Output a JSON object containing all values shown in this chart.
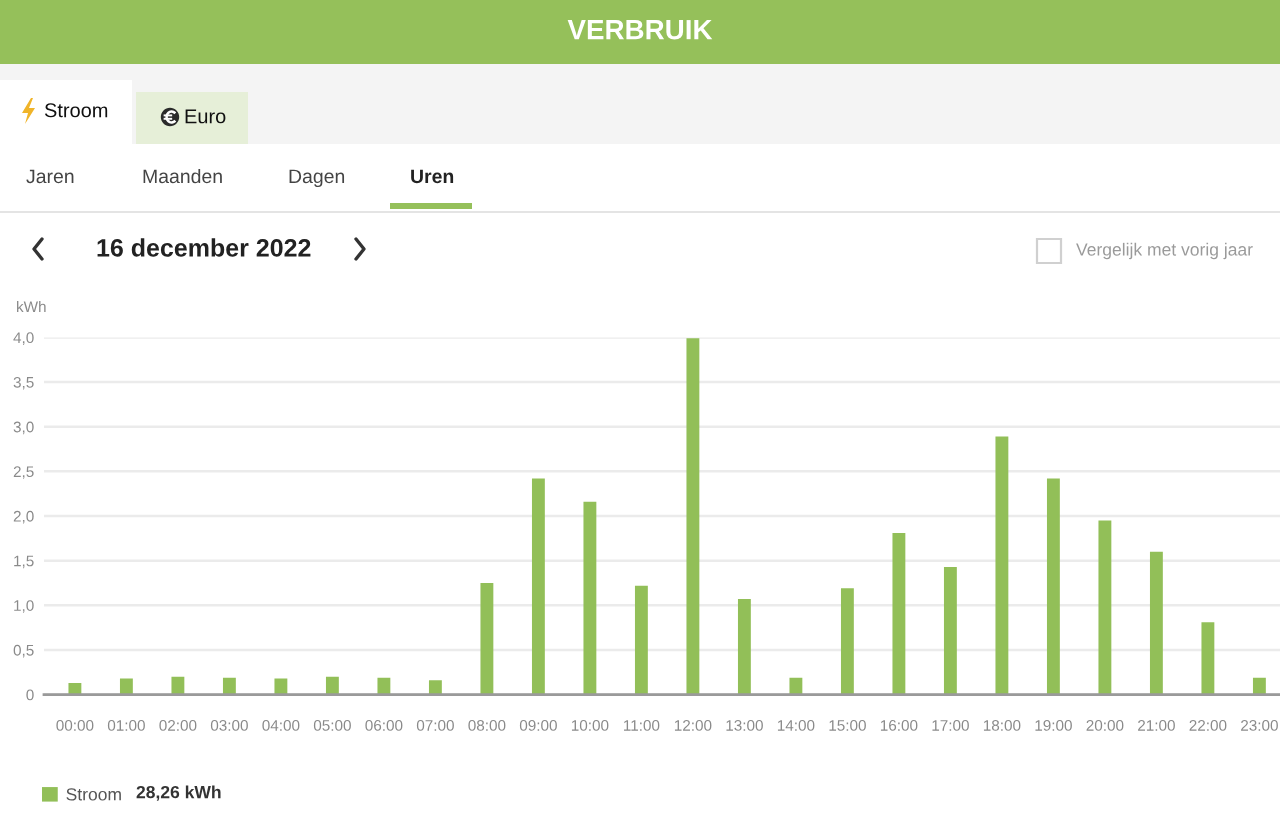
{
  "chart_data": {
    "type": "bar",
    "title": "VERBRUIK",
    "subtitle": "16 december 2022",
    "ylabel": "kWh",
    "categories": [
      "00:00",
      "01:00",
      "02:00",
      "03:00",
      "04:00",
      "05:00",
      "06:00",
      "07:00",
      "08:00",
      "09:00",
      "10:00",
      "11:00",
      "12:00",
      "13:00",
      "14:00",
      "15:00",
      "16:00",
      "17:00",
      "18:00",
      "19:00",
      "20:00",
      "21:00",
      "22:00",
      "23:00"
    ],
    "series": [
      {
        "name": "Stroom",
        "color": "#92bf58",
        "values": [
          0.13,
          0.18,
          0.2,
          0.19,
          0.18,
          0.2,
          0.19,
          0.16,
          1.25,
          2.42,
          2.16,
          1.22,
          3.99,
          1.07,
          0.19,
          1.19,
          1.81,
          1.43,
          2.89,
          2.42,
          1.95,
          1.6,
          0.81,
          0.19
        ]
      }
    ],
    "ylim": [
      0,
      4
    ],
    "yticks": [
      0,
      {
        "value": 0.5,
        "label": "0,5"
      },
      {
        "value": 1,
        "label": "1,0"
      },
      {
        "value": 1.5,
        "label": "1,5"
      },
      {
        "value": 2,
        "label": "2,0"
      },
      {
        "value": 2.5,
        "label": "2,5"
      },
      {
        "value": 3,
        "label": "3,0"
      },
      {
        "value": 3.5,
        "label": "3,5"
      },
      {
        "value": 4,
        "label": "4,0"
      }
    ],
    "grid": "y",
    "legend": "bottom left",
    "annotations": [
      "Stroom",
      "Euro",
      "Jaren",
      "Maanden",
      "Dagen",
      "Uren",
      "Vergelijk met vorig jaar",
      "28,26 kWh"
    ]
  }
}
